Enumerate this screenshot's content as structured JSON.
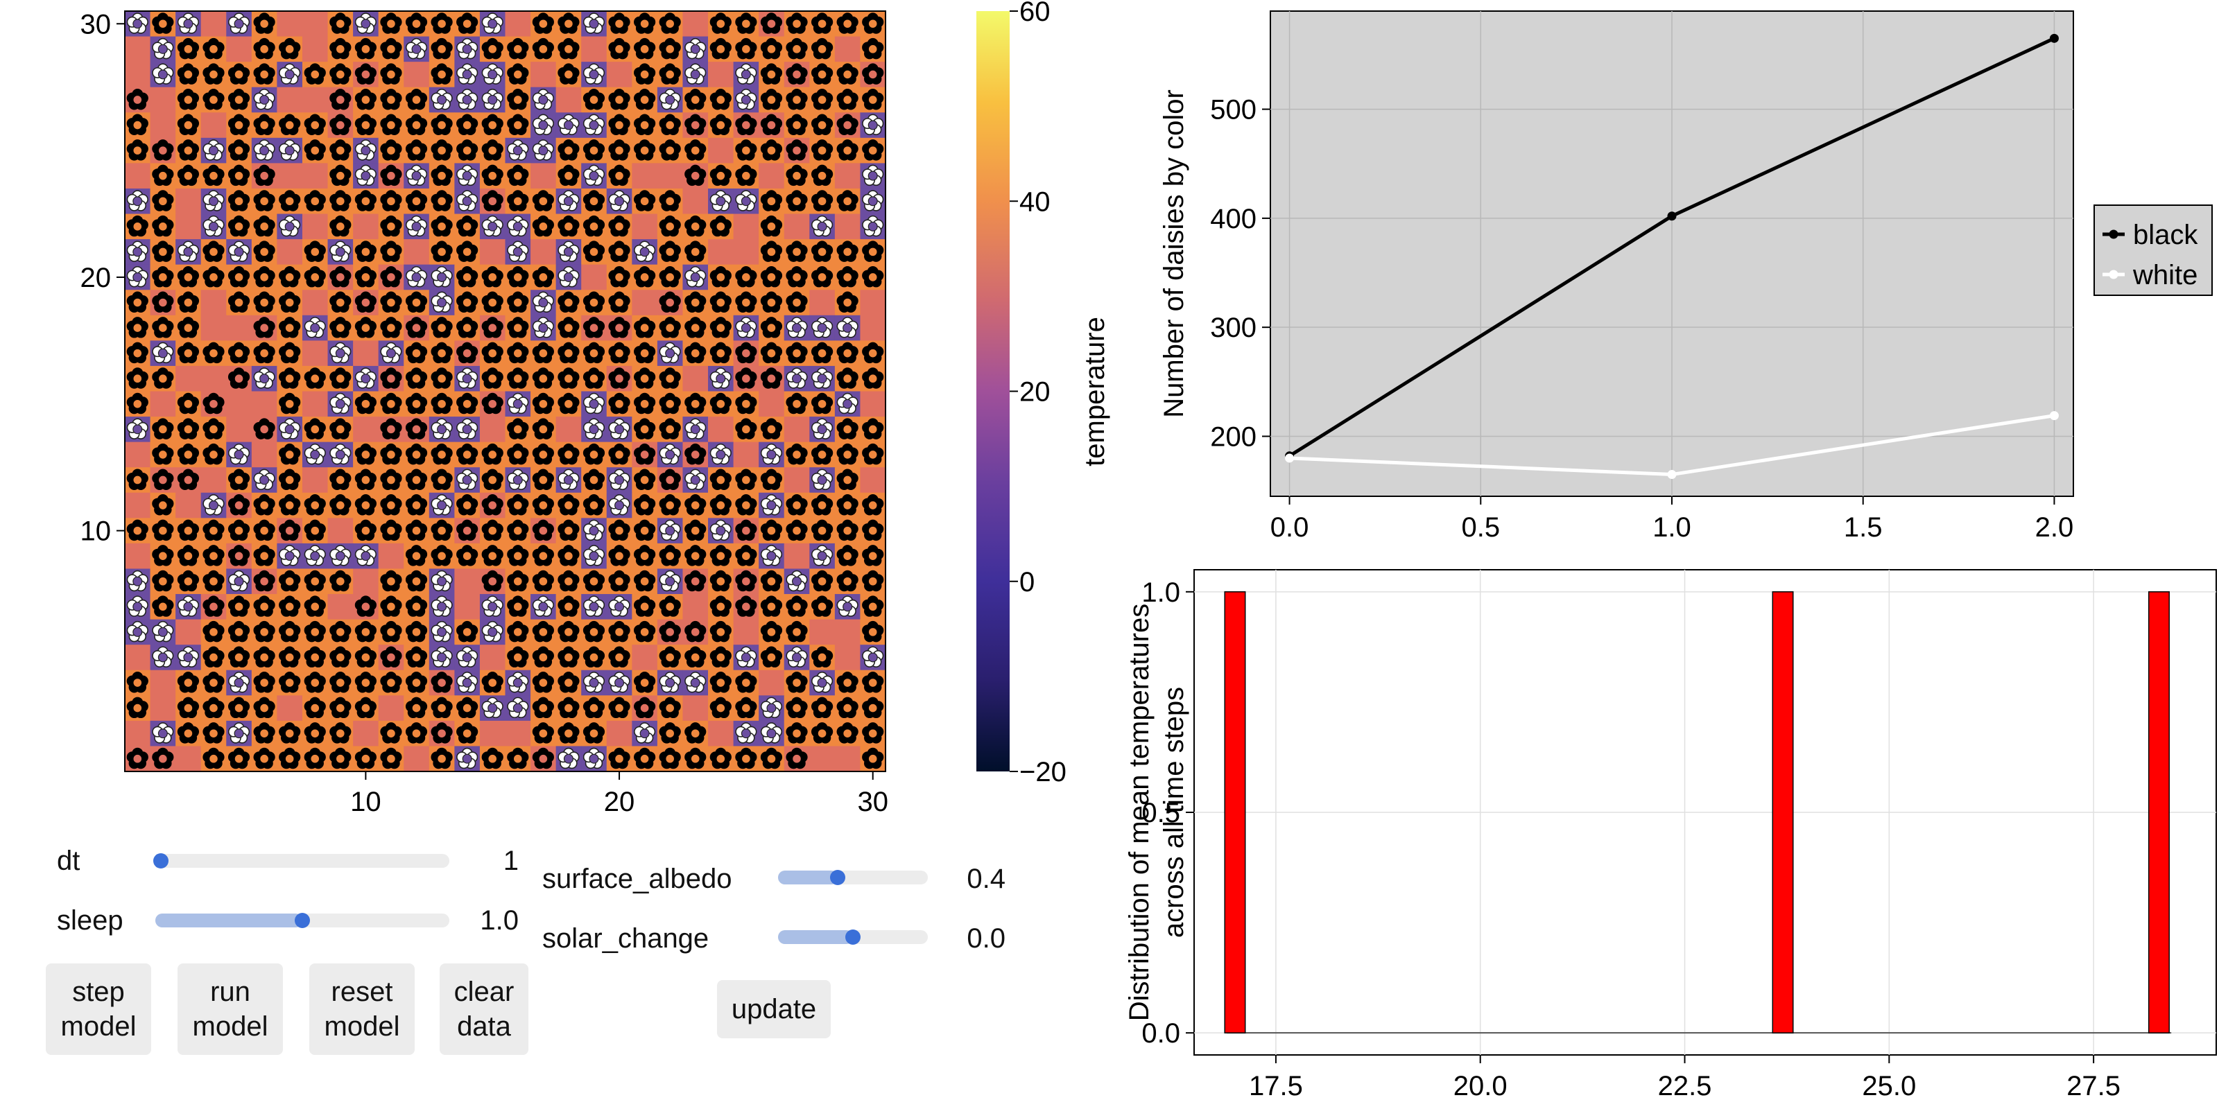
{
  "heatmap": {
    "x_ticks": [
      10,
      20,
      30
    ],
    "y_ticks": [
      10,
      20,
      30
    ],
    "grid_size": 30,
    "colors": {
      "orange": "#f0883e",
      "salmon": "#e07060",
      "purple": "#6b4da0"
    }
  },
  "colorbar": {
    "label": "temperature",
    "ticks": [
      {
        "value": 60,
        "label": "60"
      },
      {
        "value": 40,
        "label": "40"
      },
      {
        "value": 20,
        "label": "20"
      },
      {
        "value": 0,
        "label": "0"
      },
      {
        "value": -20,
        "label": "−20"
      }
    ],
    "range": [
      -20,
      60
    ]
  },
  "controls": {
    "dt": {
      "label": "dt",
      "value": "1",
      "fraction": 0.02
    },
    "sleep": {
      "label": "sleep",
      "value": "1.0",
      "fraction": 0.5
    },
    "surface_albedo": {
      "label": "surface_albedo",
      "value": "0.4",
      "fraction": 0.4
    },
    "solar_change": {
      "label": "solar_change",
      "value": "0.0",
      "fraction": 0.5
    },
    "buttons": {
      "step": "step\nmodel",
      "run": "run\nmodel",
      "reset": "reset\nmodel",
      "clear": "clear\ndata",
      "update": "update"
    }
  },
  "chart_data": [
    {
      "type": "line",
      "title": "",
      "xlabel": "",
      "ylabel": "Number of daisies by color",
      "x": [
        0.0,
        1.0,
        2.0
      ],
      "series": [
        {
          "name": "black",
          "values": [
            182,
            402,
            565
          ],
          "color": "#000000"
        },
        {
          "name": "white",
          "values": [
            180,
            165,
            219
          ],
          "color": "#ffffff"
        }
      ],
      "xlim": [
        -0.05,
        2.05
      ],
      "ylim": [
        145,
        590
      ],
      "x_ticks": [
        0.0,
        0.5,
        1.0,
        1.5,
        2.0
      ],
      "x_tick_labels": [
        "0.0",
        "0.5",
        "1.0",
        "1.5",
        "2.0"
      ],
      "y_ticks": [
        200,
        300,
        400,
        500
      ],
      "y_tick_labels": [
        "200",
        "300",
        "400",
        "500"
      ],
      "legend": "right",
      "background": "#d3d3d3"
    },
    {
      "type": "bar",
      "title": "",
      "xlabel": "",
      "ylabel_lines": [
        "Distribution of mean temperatures",
        "across all time steps"
      ],
      "bars": [
        {
          "x": 17.0,
          "value": 1.0
        },
        {
          "x": 23.7,
          "value": 1.0
        },
        {
          "x": 28.3,
          "value": 1.0
        }
      ],
      "bar_width": 0.25,
      "xlim": [
        16.5,
        29.0
      ],
      "ylim": [
        -0.05,
        1.05
      ],
      "x_ticks": [
        17.5,
        20.0,
        22.5,
        25.0,
        27.5
      ],
      "x_tick_labels": [
        "17.5",
        "20.0",
        "22.5",
        "25.0",
        "27.5"
      ],
      "y_ticks": [
        0.0,
        0.5,
        1.0
      ],
      "y_tick_labels": [
        "0.0",
        "0.5",
        "1.0"
      ],
      "bar_color": "#ff0000"
    }
  ]
}
